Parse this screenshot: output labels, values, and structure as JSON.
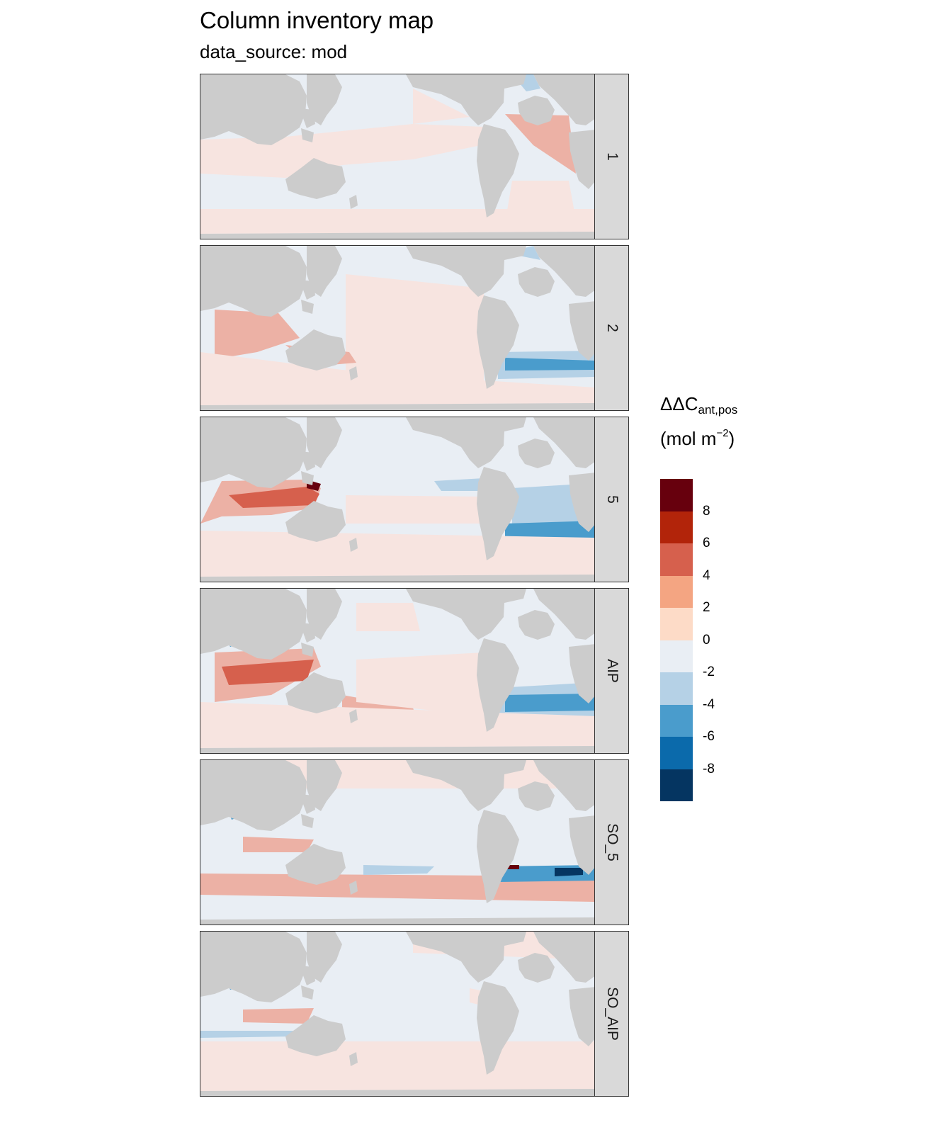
{
  "title": "Column inventory map",
  "subtitle": "data_source: mod",
  "legend": {
    "title_main": "ΔΔC",
    "title_sub": "ant,pos",
    "unit_open": "(mol m",
    "unit_sup": "−2",
    "unit_close": ")",
    "colors": [
      "#67000d",
      "#b2240a",
      "#d6604d",
      "#f4a582",
      "#fddbc7",
      "#e9eef4",
      "#b5d1e6",
      "#4a9ccc",
      "#0b6aab",
      "#053561"
    ],
    "ticks": [
      "8",
      "6",
      "4",
      "2",
      "0",
      "-2",
      "-4",
      "-6",
      "-8"
    ]
  },
  "chart_data": {
    "type": "heatmap",
    "title": "Column inventory map",
    "subtitle": "data_source: mod",
    "facet_labels": [
      "1",
      "2",
      "5",
      "AIP",
      "SO_5",
      "SO_AIP"
    ],
    "colorbar_breaks": [
      8,
      6,
      4,
      2,
      0,
      -2,
      -4,
      -6,
      -8
    ],
    "colorbar_range": [
      -10,
      10
    ],
    "colormap": "RdBu (diverging)",
    "land_color": "#cccccc"
  },
  "map_colors": {
    "land": "#cccccc",
    "ocean": "#e9eef4",
    "pos1": "#f7e4e0",
    "pos2": "#ecb1a5",
    "pos4": "#d6604d",
    "pos6": "#b2240a",
    "pos8": "#67000d",
    "neg2": "#b5d1e6",
    "neg4": "#4a9ccc",
    "neg6": "#0b6aab",
    "neg8": "#053561"
  }
}
